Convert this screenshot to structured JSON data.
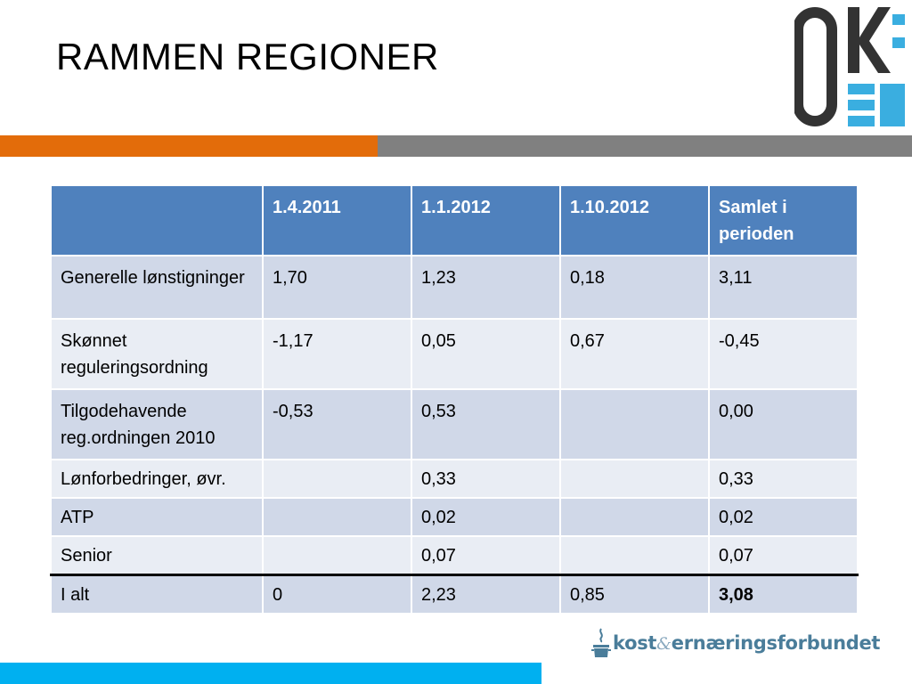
{
  "slide": {
    "title": "RAMMEN REGIONER"
  },
  "logo": {
    "letters": "OK",
    "icon": "ok-logo-icon",
    "color_dark": "#333333",
    "color_accent": "#3aaee0"
  },
  "table": {
    "headers": [
      "",
      "1.4.2011",
      "1.1.2012",
      "1.10.2012",
      "Samlet i perioden"
    ],
    "rows": [
      [
        "Generelle lønstigninger",
        "1,70",
        "1,23",
        "0,18",
        "3,11"
      ],
      [
        "Skønnet reguleringsordning",
        "-1,17",
        "0,05",
        "0,67",
        "-0,45"
      ],
      [
        "Tilgodehavende reg.ordningen 2010",
        "-0,53",
        "0,53",
        "",
        "0,00"
      ],
      [
        "Lønforbedringer, øvr.",
        "",
        "0,33",
        "",
        "0,33"
      ],
      [
        "ATP",
        "",
        "0,02",
        "",
        "0,02"
      ],
      [
        "Senior",
        "",
        "0,07",
        "",
        "0,07"
      ],
      [
        "I alt",
        "0",
        "2,23",
        "0,85",
        "3,08"
      ]
    ]
  },
  "footer": {
    "brand_part1": "kost",
    "brand_amp": "&",
    "brand_part2": "ernæringsforbundet",
    "icon": "cooking-pot-icon"
  },
  "colors": {
    "orange_bar": "#e36c0a",
    "grey_bar": "#808080",
    "blue_bar": "#00b0f0",
    "table_header": "#4f81bd",
    "row_dark": "#d0d8e8",
    "row_light": "#e9edf4"
  }
}
